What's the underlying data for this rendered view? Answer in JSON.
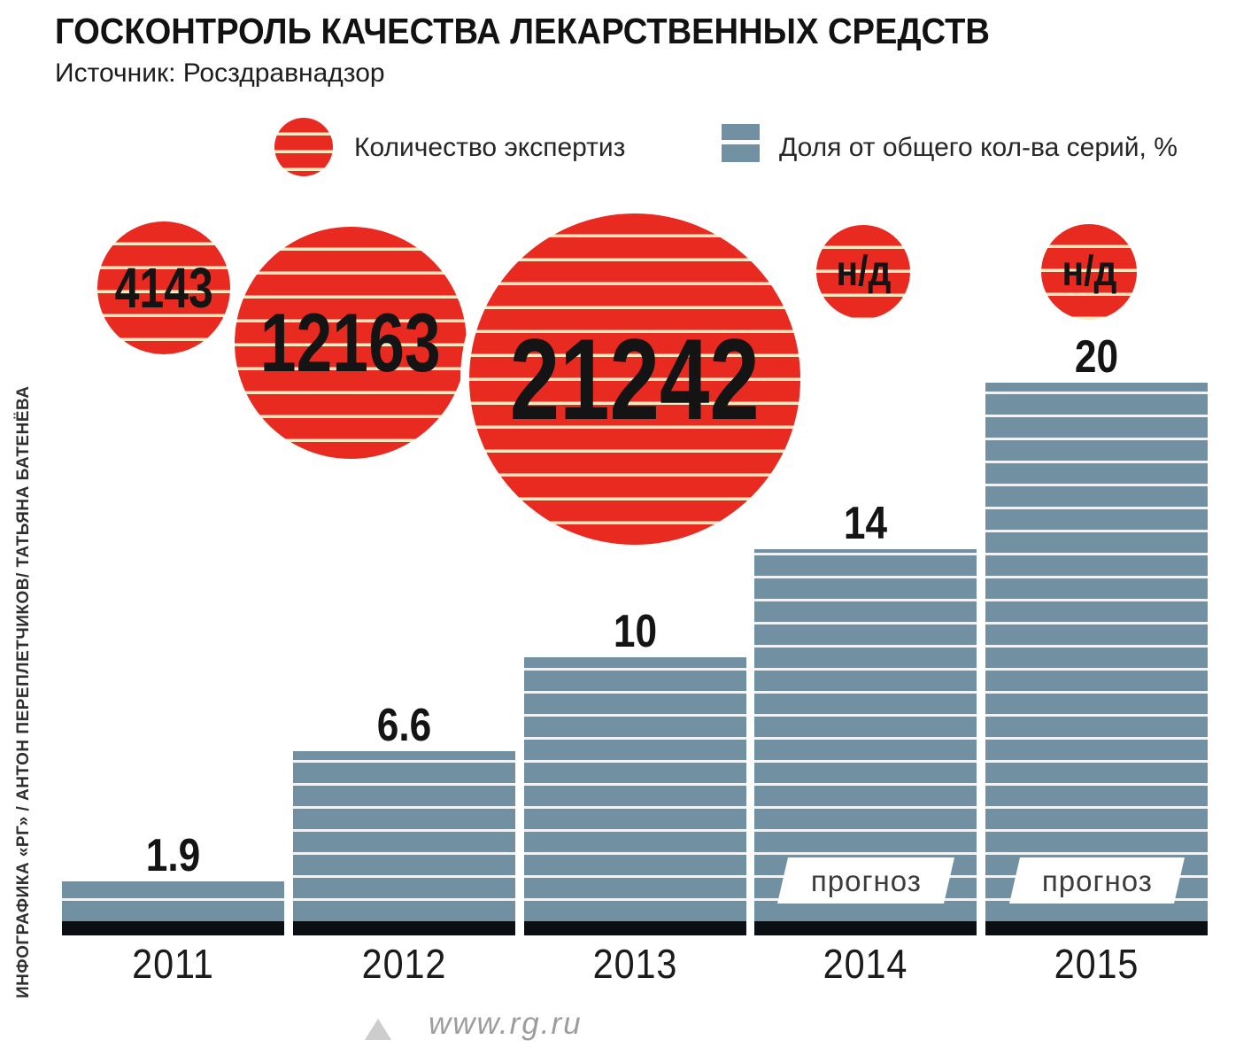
{
  "title": "ГОСКОНТРОЛЬ КАЧЕСТВА ЛЕКАРСТВЕННЫХ СРЕДСТВ",
  "source": "Источник: Росздравнадзор",
  "legend": {
    "expertise_label": "Количество экспертиз",
    "share_label": "Доля от общего кол-ва серий, %"
  },
  "forecast_label": "прогноз",
  "credit": "ИНФОГРАФИКА «РГ» / АНТОН ПЕРЕПЛЕТЧИКОВ/ ТАТЬЯНА БАТЕНЁВА",
  "footer_url": "www.rg.ru",
  "colors": {
    "bubble_red": "#e92a20",
    "bubble_stripe": "#f5e9c2",
    "bar_blue": "#7191a3",
    "bar_stripe": "#eef4f6",
    "baseline_black": "#0b0e12"
  },
  "chart_data": {
    "type": "bar",
    "title": "ГОСКОНТРОЛЬ КАЧЕСТВА ЛЕКАРСТВЕННЫХ СРЕДСТВ",
    "source": "Росздравнадзор",
    "categories": [
      "2011",
      "2012",
      "2013",
      "2014",
      "2015"
    ],
    "series": [
      {
        "name": "Количество экспертиз",
        "mark": "bubble",
        "values": [
          4143,
          12163,
          21242,
          null,
          null
        ],
        "labels": [
          "4143",
          "12163",
          "21242",
          "н/д",
          "н/д"
        ]
      },
      {
        "name": "Доля от общего кол-ва серий, %",
        "mark": "bar",
        "values": [
          1.9,
          6.6,
          10,
          14,
          20
        ],
        "labels": [
          "1.9",
          "6.6",
          "10",
          "14",
          "20"
        ],
        "ylim": [
          0,
          20
        ]
      }
    ],
    "forecast_categories": [
      "2014",
      "2015"
    ],
    "grid": false,
    "legend_position": "top"
  }
}
